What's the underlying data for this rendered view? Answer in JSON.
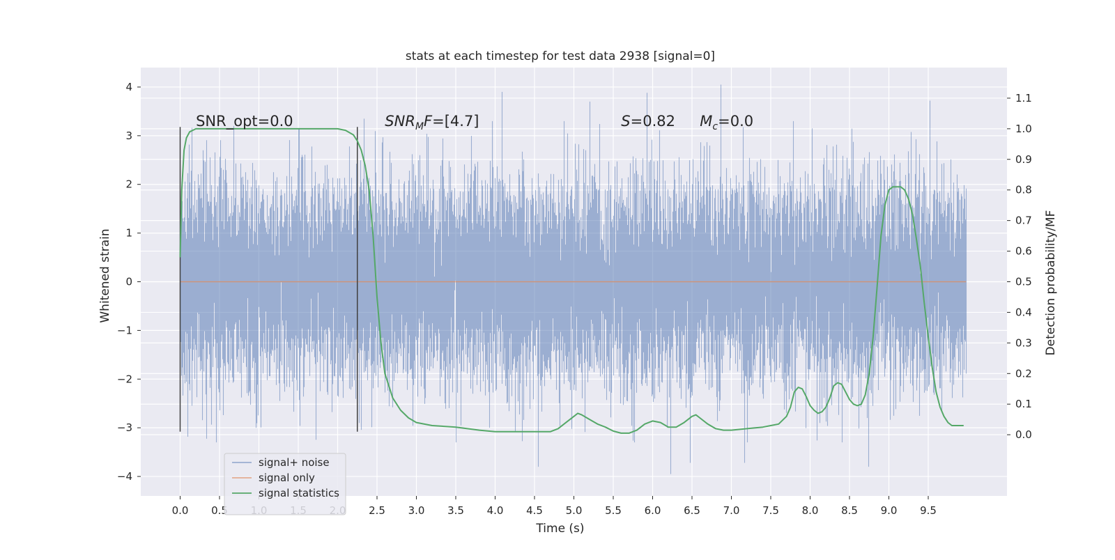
{
  "chart_data": {
    "type": "line",
    "title": "stats at each timestep for test data 2938 [signal=0]",
    "xlabel": "Time (s)",
    "ylabel": "Whitened strain",
    "y2label": "Detection probability/MF",
    "xlim": [
      -0.5,
      10.5
    ],
    "ylim": [
      -4.4,
      4.4
    ],
    "y2lim": [
      -0.2,
      1.2
    ],
    "x_ticks": [
      0.0,
      0.5,
      1.0,
      1.5,
      2.0,
      2.5,
      3.0,
      3.5,
      4.0,
      4.5,
      5.0,
      5.5,
      6.0,
      6.5,
      7.0,
      7.5,
      8.0,
      8.5,
      9.0,
      9.5
    ],
    "x_tick_labels": [
      "0.0",
      "0.5",
      "1.0",
      "1.5",
      "2.0",
      "2.5",
      "3.0",
      "3.5",
      "4.0",
      "4.5",
      "5.0",
      "5.5",
      "6.0",
      "6.5",
      "7.0",
      "7.5",
      "8.0",
      "8.5",
      "9.0",
      "9.5"
    ],
    "y_ticks": [
      -4,
      -3,
      -2,
      -1,
      0,
      1,
      2,
      3,
      4
    ],
    "y_tick_labels": [
      "−4",
      "−3",
      "−2",
      "−1",
      "0",
      "1",
      "2",
      "3",
      "4"
    ],
    "y2_ticks": [
      0.0,
      0.1,
      0.2,
      0.3,
      0.4,
      0.5,
      0.6,
      0.7,
      0.8,
      0.9,
      1.0,
      1.1
    ],
    "y2_tick_labels": [
      "0.0",
      "0.1",
      "0.2",
      "0.3",
      "0.4",
      "0.5",
      "0.6",
      "0.7",
      "0.8",
      "0.9",
      "1.0",
      "1.1"
    ],
    "grid": true,
    "legend_position": "lower-left",
    "noise_series": {
      "name": "signal+ noise",
      "color": "#4c72b0",
      "x_start": 0.0,
      "x_end": 9.98,
      "seed": 2938,
      "sigma": 1.0,
      "upper_peaks": [
        {
          "x": 4.09,
          "y": 3.9
        },
        {
          "x": 5.93,
          "y": 3.88
        },
        {
          "x": 6.87,
          "y": 4.05
        },
        {
          "x": 9.52,
          "y": 3.72
        },
        {
          "x": 5.2,
          "y": 3.7
        },
        {
          "x": 2.34,
          "y": 3.35
        }
      ],
      "lower_peaks": [
        {
          "x": 6.23,
          "y": -3.95
        },
        {
          "x": 4.55,
          "y": -3.8
        },
        {
          "x": 8.74,
          "y": -3.8
        },
        {
          "x": 6.48,
          "y": -3.72
        },
        {
          "x": 7.17,
          "y": -3.72
        },
        {
          "x": 3.5,
          "y": -3.3
        }
      ]
    },
    "signal_only_series": {
      "name": "signal only",
      "color": "#dd8452",
      "x": [
        0.0,
        9.98
      ],
      "y": [
        0.0,
        0.0
      ]
    },
    "statistics_series": {
      "name": "signal statistics",
      "color": "#55a868",
      "x": [
        0.0,
        0.02,
        0.05,
        0.08,
        0.12,
        0.2,
        0.4,
        1.0,
        1.6,
        2.0,
        2.1,
        2.2,
        2.25,
        2.3,
        2.35,
        2.4,
        2.45,
        2.5,
        2.55,
        2.6,
        2.7,
        2.8,
        2.9,
        3.0,
        3.2,
        3.5,
        3.8,
        4.0,
        4.3,
        4.6,
        4.7,
        4.8,
        4.9,
        5.0,
        5.05,
        5.1,
        5.2,
        5.3,
        5.4,
        5.5,
        5.6,
        5.7,
        5.8,
        5.9,
        6.0,
        6.1,
        6.2,
        6.3,
        6.4,
        6.5,
        6.55,
        6.6,
        6.7,
        6.8,
        6.9,
        7.0,
        7.2,
        7.4,
        7.5,
        7.6,
        7.7,
        7.75,
        7.8,
        7.85,
        7.9,
        7.95,
        8.0,
        8.05,
        8.1,
        8.15,
        8.2,
        8.25,
        8.3,
        8.35,
        8.4,
        8.45,
        8.5,
        8.55,
        8.6,
        8.65,
        8.7,
        8.75,
        8.8,
        8.85,
        8.9,
        8.95,
        9.0,
        9.05,
        9.1,
        9.15,
        9.2,
        9.25,
        9.3,
        9.35,
        9.4,
        9.45,
        9.5,
        9.55,
        9.6,
        9.65,
        9.7,
        9.75,
        9.8,
        9.85,
        9.9,
        9.95
      ],
      "y": [
        0.58,
        0.8,
        0.93,
        0.97,
        0.99,
        1.0,
        1.0,
        1.0,
        1.0,
        1.0,
        0.995,
        0.98,
        0.96,
        0.93,
        0.88,
        0.8,
        0.65,
        0.45,
        0.3,
        0.2,
        0.12,
        0.08,
        0.055,
        0.04,
        0.03,
        0.025,
        0.015,
        0.01,
        0.01,
        0.01,
        0.01,
        0.02,
        0.04,
        0.06,
        0.07,
        0.065,
        0.05,
        0.035,
        0.025,
        0.012,
        0.005,
        0.005,
        0.015,
        0.035,
        0.045,
        0.04,
        0.025,
        0.025,
        0.04,
        0.06,
        0.065,
        0.055,
        0.035,
        0.02,
        0.015,
        0.015,
        0.02,
        0.025,
        0.03,
        0.035,
        0.06,
        0.09,
        0.14,
        0.155,
        0.15,
        0.125,
        0.095,
        0.08,
        0.07,
        0.075,
        0.09,
        0.12,
        0.16,
        0.17,
        0.165,
        0.14,
        0.115,
        0.1,
        0.095,
        0.1,
        0.13,
        0.2,
        0.32,
        0.48,
        0.65,
        0.75,
        0.8,
        0.81,
        0.81,
        0.81,
        0.8,
        0.77,
        0.72,
        0.64,
        0.55,
        0.43,
        0.32,
        0.22,
        0.14,
        0.09,
        0.06,
        0.04,
        0.03,
        0.03,
        0.03,
        0.03
      ]
    },
    "vertical_markers": [
      {
        "x": 0.0,
        "ymin": -3.08,
        "ymax": 3.18,
        "color": "#404040"
      },
      {
        "x": 2.25,
        "ymin": -3.08,
        "ymax": 3.18,
        "color": "#404040"
      }
    ],
    "annotations": [
      {
        "x": 0.2,
        "y": 3.2,
        "parts": [
          {
            "text": "SNR_opt=0.0",
            "italic": false
          }
        ]
      },
      {
        "x": 2.6,
        "y": 3.2,
        "parts": [
          {
            "text": "SNR",
            "italic": true
          },
          {
            "text": "M",
            "italic": true,
            "sub": true
          },
          {
            "text": "F",
            "italic": true
          },
          {
            "text": "=[4.7]",
            "italic": false
          }
        ]
      },
      {
        "x": 5.6,
        "y": 3.2,
        "parts": [
          {
            "text": "S",
            "italic": true
          },
          {
            "text": "=0.82",
            "italic": false
          }
        ]
      },
      {
        "x": 6.6,
        "y": 3.2,
        "parts": [
          {
            "text": "M",
            "italic": true
          },
          {
            "text": "c",
            "italic": true,
            "sub": true
          },
          {
            "text": "=0.0",
            "italic": false
          }
        ]
      }
    ]
  }
}
